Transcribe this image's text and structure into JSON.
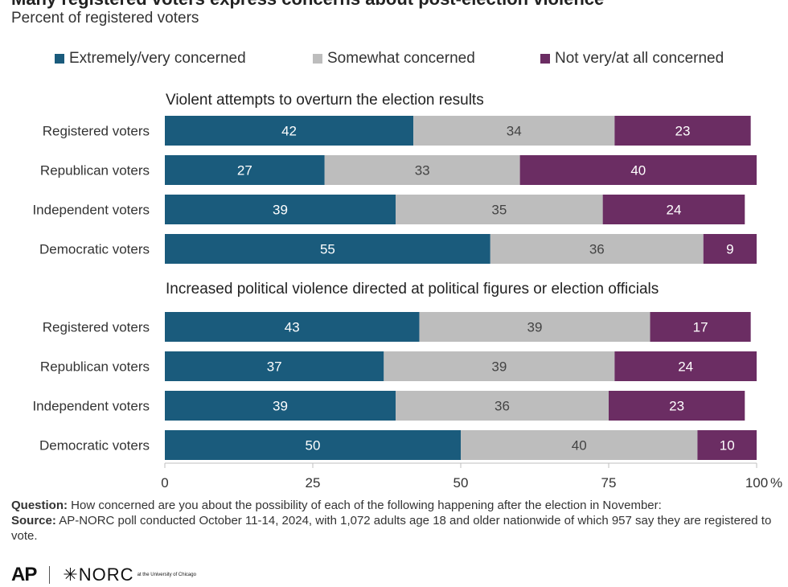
{
  "header": {
    "title": "Many registered voters express concerns about post-election violence",
    "subtitle": "Percent of registered voters"
  },
  "legend": {
    "items": [
      {
        "label": "Extremely/very concerned",
        "color": "#1a5b7c"
      },
      {
        "label": "Somewhat concerned",
        "color": "#bdbdbd"
      },
      {
        "label": "Not very/at all concerned",
        "color": "#6b2d63"
      }
    ]
  },
  "chart_data": {
    "type": "bar",
    "orientation": "horizontal",
    "stacked": true,
    "xlim": [
      0,
      100
    ],
    "xticks": [
      0,
      25,
      50,
      75,
      100
    ],
    "xtick_labels": [
      "0",
      "25",
      "50",
      "75",
      "100"
    ],
    "x_unit": "%",
    "grid": false,
    "legend_position": "top",
    "series_names": [
      "Extremely/very concerned",
      "Somewhat concerned",
      "Not very/at all concerned"
    ],
    "series_colors": [
      "#1a5b7c",
      "#bdbdbd",
      "#6b2d63"
    ],
    "label_colors": [
      "#ffffff",
      "#444444",
      "#ffffff"
    ],
    "panels": [
      {
        "title": "Violent attempts to overturn the election results",
        "categories": [
          "Registered voters",
          "Republican voters",
          "Independent voters",
          "Democratic voters"
        ],
        "values": [
          [
            42,
            34,
            23
          ],
          [
            27,
            33,
            40
          ],
          [
            39,
            35,
            24
          ],
          [
            55,
            36,
            9
          ]
        ]
      },
      {
        "title": "Increased political violence directed at political figures or election officials",
        "categories": [
          "Registered voters",
          "Republican voters",
          "Independent voters",
          "Democratic voters"
        ],
        "values": [
          [
            43,
            39,
            17
          ],
          [
            37,
            39,
            24
          ],
          [
            39,
            36,
            23
          ],
          [
            50,
            40,
            10
          ]
        ]
      }
    ]
  },
  "footnote": {
    "question_label": "Question:",
    "question_text": "How concerned are you about the possibility of each of the following happening after the election in November:",
    "source_label": "Source:",
    "source_text": "AP-NORC poll conducted October 11-14, 2024, with 1,072 adults age 18 and older nationwide of which 957 say they are registered to vote."
  },
  "logos": {
    "ap": "AP",
    "norc": "NORC",
    "norc_small": "at the University of Chicago"
  }
}
